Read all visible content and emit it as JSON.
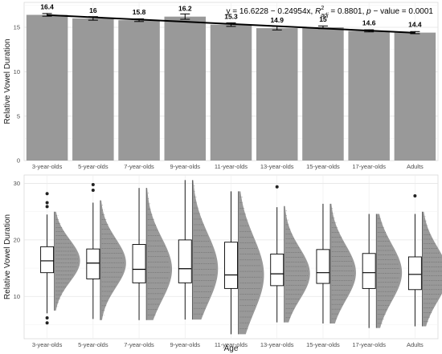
{
  "chart_data": [
    {
      "type": "bar",
      "ylabel": "Relative Vowel Duration",
      "ylim": [
        0,
        17.8
      ],
      "yticks": [
        0,
        5,
        10,
        15
      ],
      "categories": [
        "3-year-olds",
        "5-year-olds",
        "7-year-olds",
        "9-year-olds",
        "11-year-olds",
        "13-year-olds",
        "15-year-olds",
        "17-year-olds",
        "Adults"
      ],
      "values": [
        16.4,
        16,
        15.8,
        16.2,
        15.3,
        14.9,
        15,
        14.6,
        14.4
      ],
      "value_labels": [
        "16.4",
        "16",
        "15.8",
        "16.2",
        "15.3",
        "14.9",
        "15",
        "14.6",
        "14.4"
      ],
      "error_half_width": [
        0.15,
        0.2,
        0.15,
        0.3,
        0.2,
        0.2,
        0.15,
        0.12,
        0.12
      ],
      "bar_color": "#999999",
      "regression": {
        "intercept": 16.6228,
        "slope": -0.24954,
        "label_parts": {
          "eq": "y = 16.6228 − 0.24954x,",
          "r": "R",
          "r_sup": "2",
          "r_sub": "adj",
          "r_val": "= 0.8801,",
          "p": "p",
          "p_val": "− value = 0.0001"
        }
      },
      "grid": true
    },
    {
      "type": "box_violin",
      "xlabel": "Age",
      "ylabel": "Relative Vowel Duration",
      "ylim": [
        2.5,
        31.5
      ],
      "yticks": [
        10,
        20,
        30
      ],
      "categories": [
        "3-year-olds",
        "5-year-olds",
        "7-year-olds",
        "9-year-olds",
        "11-year-olds",
        "13-year-olds",
        "15-year-olds",
        "17-year-olds",
        "Adults"
      ],
      "boxes": [
        {
          "min": 7,
          "q1": 14.2,
          "median": 16.3,
          "q3": 18.8,
          "max": 24.5,
          "outliers": [
            28.2,
            26.6,
            25.9,
            6.2,
            5.3
          ],
          "data_min": 7.5,
          "data_max": 25
        },
        {
          "min": 6,
          "q1": 13.1,
          "median": 15.9,
          "q3": 18.4,
          "max": 26.6,
          "outliers": [
            29.8,
            28.8
          ],
          "data_min": 5.8,
          "data_max": 27
        },
        {
          "min": 5.8,
          "q1": 12.4,
          "median": 14.8,
          "q3": 19.2,
          "max": 29.2,
          "outliers": [],
          "data_min": 5.8,
          "data_max": 29.2
        },
        {
          "min": 5.9,
          "q1": 12.4,
          "median": 14.9,
          "q3": 20.0,
          "max": 30.6,
          "outliers": [],
          "data_min": 5.9,
          "data_max": 30.6
        },
        {
          "min": 3.3,
          "q1": 11.4,
          "median": 13.8,
          "q3": 19.6,
          "max": 28.6,
          "outliers": [],
          "data_min": 3.3,
          "data_max": 28.6
        },
        {
          "min": 5.4,
          "q1": 11.9,
          "median": 14.0,
          "q3": 17.5,
          "max": 25.8,
          "outliers": [
            29.4
          ],
          "data_min": 5.4,
          "data_max": 26
        },
        {
          "min": 5.2,
          "q1": 12.3,
          "median": 14.2,
          "q3": 18.3,
          "max": 26.4,
          "outliers": [],
          "data_min": 5.2,
          "data_max": 26.4
        },
        {
          "min": 4.4,
          "q1": 11.4,
          "median": 14.2,
          "q3": 17.6,
          "max": 24.6,
          "outliers": [],
          "data_min": 4.4,
          "data_max": 24.6
        },
        {
          "min": 4.7,
          "q1": 11.2,
          "median": 13.9,
          "q3": 17.0,
          "max": 24.6,
          "outliers": [
            27.8
          ],
          "data_min": 4.7,
          "data_max": 25
        }
      ],
      "violin_color": "#999999",
      "grid": true
    }
  ]
}
